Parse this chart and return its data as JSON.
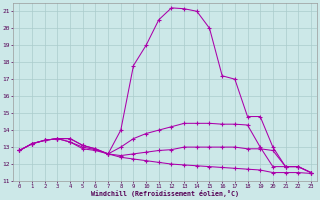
{
  "bg_color": "#cce8e8",
  "grid_color": "#aacccc",
  "line_color": "#aa00aa",
  "xlabel": "Windchill (Refroidissement éolien,°C)",
  "xlim": [
    -0.5,
    23.5
  ],
  "ylim": [
    11,
    21.5
  ],
  "xticks": [
    0,
    1,
    2,
    3,
    4,
    5,
    6,
    7,
    8,
    9,
    10,
    11,
    12,
    13,
    14,
    15,
    16,
    17,
    18,
    19,
    20,
    21,
    22,
    23
  ],
  "yticks": [
    11,
    12,
    13,
    14,
    15,
    16,
    17,
    18,
    19,
    20,
    21
  ],
  "s1": [
    12.8,
    13.2,
    13.4,
    13.5,
    13.5,
    13.1,
    12.9,
    12.6,
    14.0,
    17.8,
    19.0,
    20.5,
    21.2,
    21.15,
    21.0,
    20.0,
    17.2,
    17.0,
    14.8,
    14.8,
    13.0,
    11.85,
    11.85,
    11.5
  ],
  "s2": [
    12.8,
    13.2,
    13.4,
    13.5,
    13.5,
    13.1,
    12.9,
    12.6,
    13.0,
    13.5,
    13.8,
    14.0,
    14.2,
    14.4,
    14.4,
    14.4,
    14.35,
    14.35,
    14.3,
    13.0,
    11.85,
    11.85,
    11.85,
    11.5
  ],
  "s3": [
    12.8,
    13.2,
    13.4,
    13.5,
    13.3,
    13.0,
    12.85,
    12.6,
    12.5,
    12.6,
    12.7,
    12.8,
    12.85,
    13.0,
    13.0,
    13.0,
    13.0,
    13.0,
    12.9,
    12.9,
    12.8,
    11.85,
    11.85,
    11.5
  ],
  "s4": [
    12.8,
    13.2,
    13.4,
    13.5,
    13.3,
    12.9,
    12.8,
    12.6,
    12.4,
    12.3,
    12.2,
    12.1,
    12.0,
    11.95,
    11.9,
    11.85,
    11.8,
    11.75,
    11.7,
    11.65,
    11.5,
    11.5,
    11.5,
    11.45
  ]
}
